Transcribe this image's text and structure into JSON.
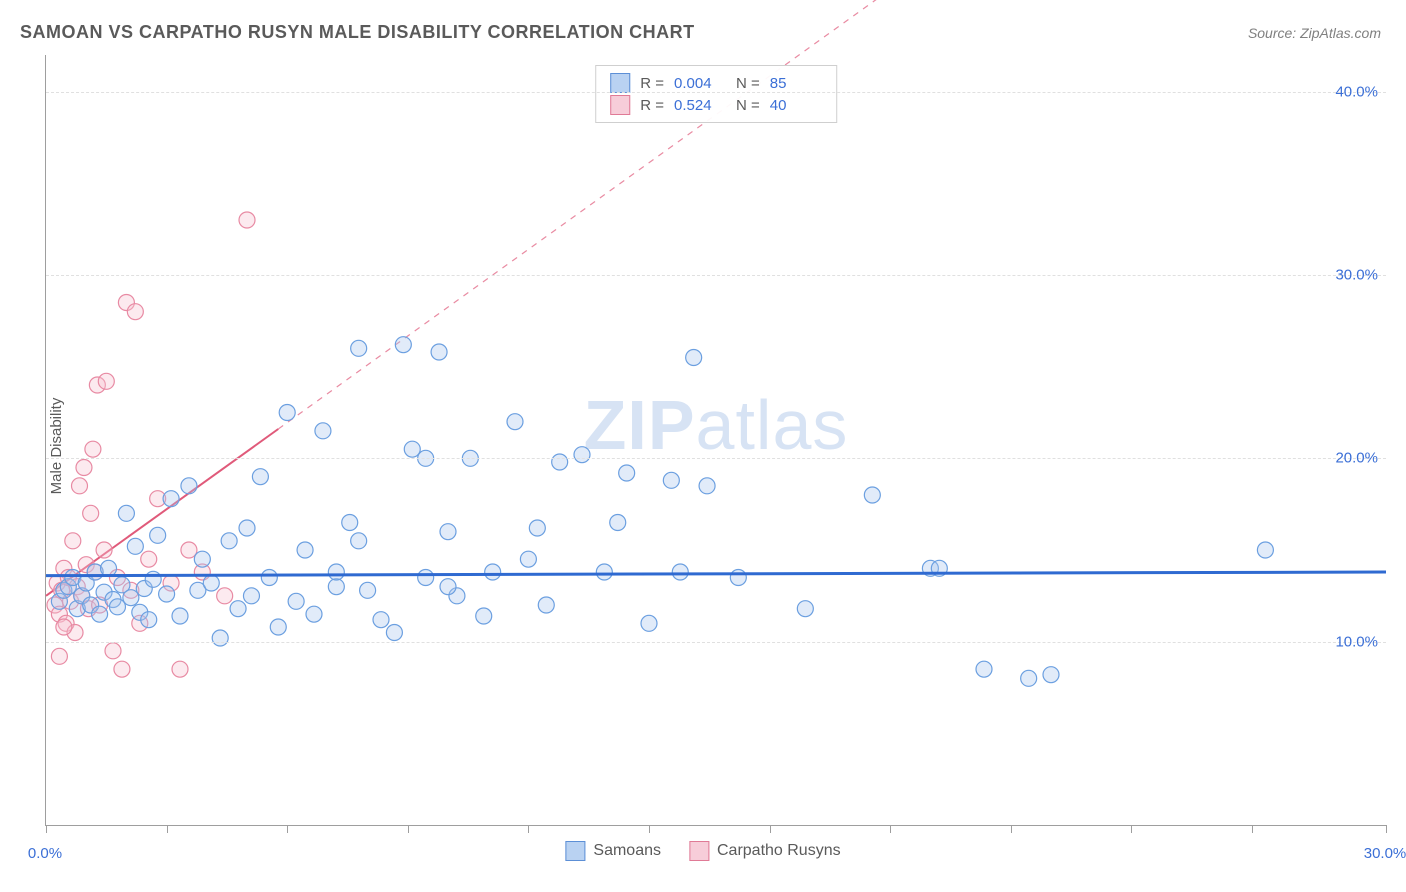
{
  "title": "SAMOAN VS CARPATHO RUSYN MALE DISABILITY CORRELATION CHART",
  "source": "Source: ZipAtlas.com",
  "ylabel": "Male Disability",
  "watermark": {
    "bold": "ZIP",
    "rest": "atlas"
  },
  "chart": {
    "type": "scatter",
    "background_color": "#ffffff",
    "grid_color": "#e0e0e0",
    "axis_color": "#9e9e9e",
    "tick_label_color": "#3b6fd6",
    "xlim": [
      0,
      30
    ],
    "ylim": [
      0,
      42
    ],
    "xticks": [
      0,
      2.7,
      5.4,
      8.1,
      10.8,
      13.5,
      16.2,
      18.9,
      21.6,
      24.3,
      27,
      30
    ],
    "xtick_labels": {
      "0": "0.0%",
      "30": "30.0%"
    },
    "yticks": [
      10,
      20,
      30,
      40
    ],
    "ytick_labels": {
      "10": "10.0%",
      "20": "20.0%",
      "30": "30.0%",
      "40": "40.0%"
    },
    "marker_radius": 8,
    "series": {
      "samoans": {
        "label": "Samoans",
        "fill": "#a9c7ef",
        "stroke": "#6b9fe0",
        "swatch_fill": "#b9d2f2",
        "swatch_border": "#5c8fd6",
        "regression": {
          "color": "#2f6ad1",
          "width": 3,
          "y_at_xmin": 13.6,
          "y_at_xmax": 13.8
        },
        "R": "0.004",
        "N": "85",
        "points": [
          [
            0.3,
            12.2
          ],
          [
            0.4,
            12.8
          ],
          [
            0.5,
            13.0
          ],
          [
            0.6,
            13.5
          ],
          [
            0.7,
            11.8
          ],
          [
            0.8,
            12.5
          ],
          [
            0.9,
            13.2
          ],
          [
            1.0,
            12.0
          ],
          [
            1.1,
            13.8
          ],
          [
            1.2,
            11.5
          ],
          [
            1.3,
            12.7
          ],
          [
            1.4,
            14.0
          ],
          [
            1.5,
            12.3
          ],
          [
            1.6,
            11.9
          ],
          [
            1.7,
            13.1
          ],
          [
            1.8,
            17.0
          ],
          [
            1.9,
            12.4
          ],
          [
            2.0,
            15.2
          ],
          [
            2.1,
            11.6
          ],
          [
            2.2,
            12.9
          ],
          [
            2.3,
            11.2
          ],
          [
            2.4,
            13.4
          ],
          [
            2.5,
            15.8
          ],
          [
            2.7,
            12.6
          ],
          [
            2.8,
            17.8
          ],
          [
            3.0,
            11.4
          ],
          [
            3.2,
            18.5
          ],
          [
            3.4,
            12.8
          ],
          [
            3.5,
            14.5
          ],
          [
            3.7,
            13.2
          ],
          [
            3.9,
            10.2
          ],
          [
            4.1,
            15.5
          ],
          [
            4.3,
            11.8
          ],
          [
            4.5,
            16.2
          ],
          [
            4.6,
            12.5
          ],
          [
            4.8,
            19.0
          ],
          [
            5.0,
            13.5
          ],
          [
            5.2,
            10.8
          ],
          [
            5.4,
            22.5
          ],
          [
            5.6,
            12.2
          ],
          [
            5.8,
            15.0
          ],
          [
            6.0,
            11.5
          ],
          [
            6.2,
            21.5
          ],
          [
            6.5,
            13.0
          ],
          [
            6.8,
            16.5
          ],
          [
            7.0,
            26.0
          ],
          [
            7.2,
            12.8
          ],
          [
            7.5,
            11.2
          ],
          [
            7.8,
            10.5
          ],
          [
            8.0,
            26.2
          ],
          [
            8.2,
            20.5
          ],
          [
            8.5,
            13.5
          ],
          [
            8.8,
            25.8
          ],
          [
            9.0,
            16.0
          ],
          [
            9.2,
            12.5
          ],
          [
            9.5,
            20.0
          ],
          [
            9.8,
            11.4
          ],
          [
            10.0,
            13.8
          ],
          [
            10.5,
            22.0
          ],
          [
            10.8,
            14.5
          ],
          [
            11.0,
            16.2
          ],
          [
            11.2,
            12.0
          ],
          [
            11.5,
            19.8
          ],
          [
            12.0,
            20.2
          ],
          [
            12.5,
            13.8
          ],
          [
            12.8,
            16.5
          ],
          [
            13.0,
            19.2
          ],
          [
            13.5,
            11.0
          ],
          [
            14.0,
            18.8
          ],
          [
            14.2,
            13.8
          ],
          [
            14.5,
            25.5
          ],
          [
            14.8,
            18.5
          ],
          [
            15.5,
            13.5
          ],
          [
            17.0,
            11.8
          ],
          [
            18.5,
            18.0
          ],
          [
            19.8,
            14.0
          ],
          [
            20.0,
            14.0
          ],
          [
            21.0,
            8.5
          ],
          [
            22.0,
            8.0
          ],
          [
            22.5,
            8.2
          ],
          [
            27.3,
            15.0
          ],
          [
            6.5,
            13.8
          ],
          [
            7.0,
            15.5
          ],
          [
            8.5,
            20.0
          ],
          [
            9.0,
            13.0
          ]
        ]
      },
      "carpatho": {
        "label": "Carpatho Rusyns",
        "fill": "#f5c3d0",
        "stroke": "#e88aa3",
        "swatch_fill": "#f7cdd9",
        "swatch_border": "#e07a96",
        "regression": {
          "color": "#e05a7a",
          "width": 2,
          "y_at_xmin": 12.5,
          "y_at_xmax": 65,
          "dashed_after_x": 5.2
        },
        "R": "0.524",
        "N": "40",
        "points": [
          [
            0.2,
            12.0
          ],
          [
            0.25,
            13.2
          ],
          [
            0.3,
            11.5
          ],
          [
            0.35,
            12.8
          ],
          [
            0.4,
            14.0
          ],
          [
            0.45,
            11.0
          ],
          [
            0.5,
            13.5
          ],
          [
            0.55,
            12.2
          ],
          [
            0.6,
            15.5
          ],
          [
            0.65,
            10.5
          ],
          [
            0.7,
            13.0
          ],
          [
            0.75,
            18.5
          ],
          [
            0.8,
            12.5
          ],
          [
            0.85,
            19.5
          ],
          [
            0.9,
            14.2
          ],
          [
            0.95,
            11.8
          ],
          [
            1.0,
            17.0
          ],
          [
            1.05,
            20.5
          ],
          [
            1.1,
            13.8
          ],
          [
            1.15,
            24.0
          ],
          [
            1.2,
            12.0
          ],
          [
            1.3,
            15.0
          ],
          [
            1.35,
            24.2
          ],
          [
            1.5,
            9.5
          ],
          [
            1.6,
            13.5
          ],
          [
            1.7,
            8.5
          ],
          [
            1.8,
            28.5
          ],
          [
            1.9,
            12.8
          ],
          [
            2.0,
            28.0
          ],
          [
            2.1,
            11.0
          ],
          [
            2.3,
            14.5
          ],
          [
            2.5,
            17.8
          ],
          [
            2.8,
            13.2
          ],
          [
            3.0,
            8.5
          ],
          [
            3.2,
            15.0
          ],
          [
            3.5,
            13.8
          ],
          [
            4.0,
            12.5
          ],
          [
            4.5,
            33.0
          ],
          [
            0.3,
            9.2
          ],
          [
            0.4,
            10.8
          ]
        ]
      }
    },
    "legend_top_labels": {
      "R": "R =",
      "N": "N ="
    }
  }
}
